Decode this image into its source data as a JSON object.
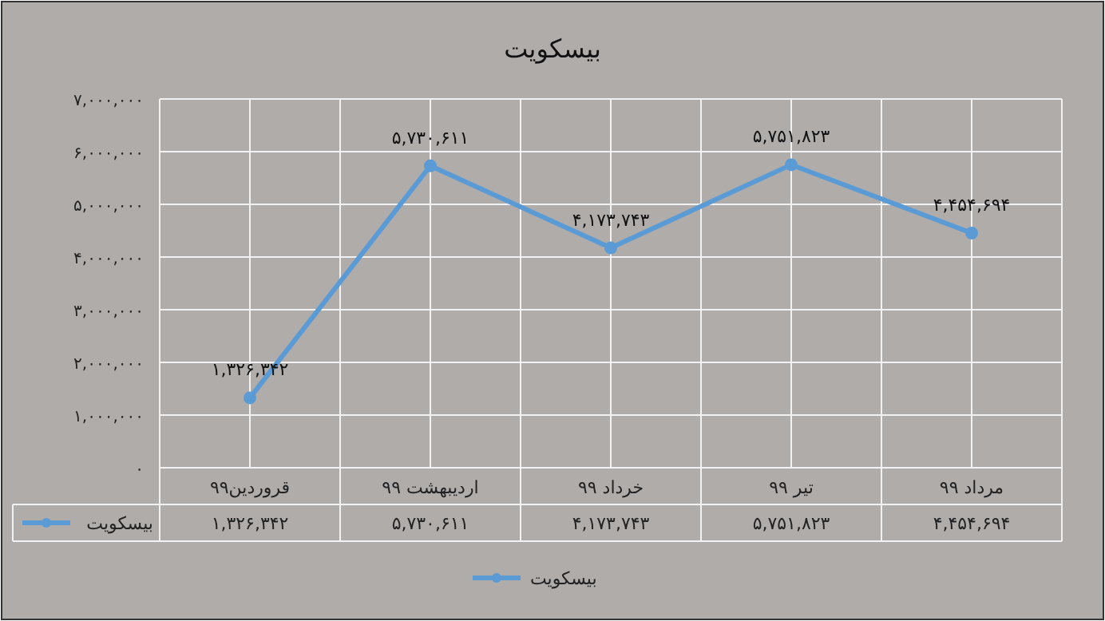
{
  "chart_data": {
    "type": "line",
    "title": "بیسکویت",
    "categories": [
      "قروردین۹۹",
      "اردیبهشت ۹۹",
      "خرداد ۹۹",
      "تیر ۹۹",
      "مرداد ۹۹"
    ],
    "series": [
      {
        "name": "بیسکویت",
        "color": "#5b9bd5",
        "values": [
          1326342,
          5730611,
          4173743,
          5751823,
          4454694
        ],
        "value_labels": [
          "۱,۳۲۶,۳۴۲",
          "۵,۷۳۰,۶۱۱",
          "۴,۱۷۳,۷۴۳",
          "۵,۷۵۱,۸۲۳",
          "۴,۴۵۴,۶۹۴"
        ]
      }
    ],
    "ylim": [
      0,
      7000000
    ],
    "yticks": [
      {
        "value": 0,
        "label": "۰"
      },
      {
        "value": 1000000,
        "label": "۱,۰۰۰,۰۰۰"
      },
      {
        "value": 2000000,
        "label": "۲,۰۰۰,۰۰۰"
      },
      {
        "value": 3000000,
        "label": "۳,۰۰۰,۰۰۰"
      },
      {
        "value": 4000000,
        "label": "۴,۰۰۰,۰۰۰"
      },
      {
        "value": 5000000,
        "label": "۵,۰۰۰,۰۰۰"
      },
      {
        "value": 6000000,
        "label": "۶,۰۰۰,۰۰۰"
      },
      {
        "value": 7000000,
        "label": "۷,۰۰۰,۰۰۰"
      }
    ],
    "grid": true,
    "marker": "circle",
    "line_style": "solid",
    "legend": "bottom"
  }
}
